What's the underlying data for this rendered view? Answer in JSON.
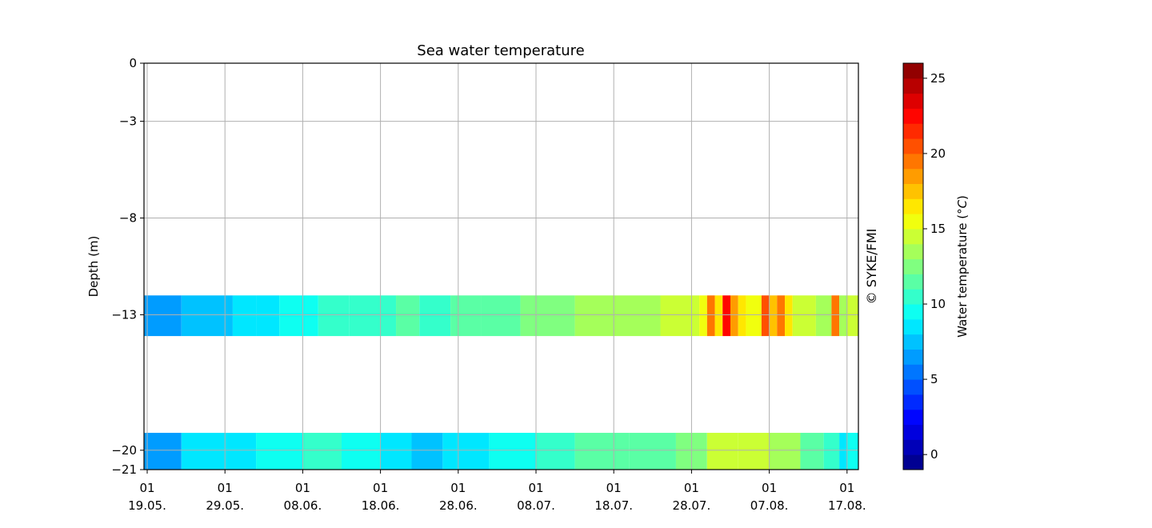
{
  "chart_data": {
    "type": "heatmap",
    "title": "Sea water temperature",
    "ylabel": "Depth (m)",
    "xlabel": "",
    "y_ticks": [
      0,
      -3,
      -8,
      -13,
      -20,
      -21
    ],
    "ylim": [
      -21,
      0
    ],
    "x_tick_labels": [
      {
        "line1": "01",
        "line2": "19.05."
      },
      {
        "line1": "01",
        "line2": "29.05."
      },
      {
        "line1": "01",
        "line2": "08.06."
      },
      {
        "line1": "01",
        "line2": "18.06."
      },
      {
        "line1": "01",
        "line2": "28.06."
      },
      {
        "line1": "01",
        "line2": "08.07."
      },
      {
        "line1": "01",
        "line2": "18.07."
      },
      {
        "line1": "01",
        "line2": "28.07."
      },
      {
        "line1": "01",
        "line2": "07.08."
      },
      {
        "line1": "01",
        "line2": "17.08."
      }
    ],
    "x_range": [
      "2023-05-19T01:00",
      "2023-08-18T17:00"
    ],
    "grid": true,
    "colorbar": {
      "label": "Water temperature (°C)",
      "label_main": "Water temperature (",
      "label_unit": "°C",
      "label_close": ")",
      "range": [
        -1,
        26
      ],
      "ticks": [
        0,
        5,
        10,
        15,
        20,
        25
      ],
      "colormap": "jet",
      "step": 1
    },
    "attribution": "© SYKE/FMI",
    "layers": [
      {
        "depth_range": [
          -14.1,
          -12.0
        ],
        "segments": [
          {
            "day": 0,
            "t": 6.4
          },
          {
            "day": 4.4,
            "t": 7.6
          },
          {
            "day": 11,
            "t": 8.2
          },
          {
            "day": 14,
            "t": 8.8
          },
          {
            "day": 17,
            "t": 9.3
          },
          {
            "day": 22,
            "t": 10.3
          },
          {
            "day": 26,
            "t": 10.9
          },
          {
            "day": 32,
            "t": 11.4
          },
          {
            "day": 35,
            "t": 10.8
          },
          {
            "day": 39,
            "t": 11.6
          },
          {
            "day": 43,
            "t": 11.9
          },
          {
            "day": 48,
            "t": 12.6
          },
          {
            "day": 55,
            "t": 13.2
          },
          {
            "day": 60,
            "t": 13.8
          },
          {
            "day": 66,
            "t": 14.1
          },
          {
            "day": 71,
            "t": 15.1
          },
          {
            "day": 72,
            "t": 19.4
          },
          {
            "day": 73,
            "t": 16.2
          },
          {
            "day": 74,
            "t": 22.8
          },
          {
            "day": 75,
            "t": 18.2
          },
          {
            "day": 76,
            "t": 16.9
          },
          {
            "day": 77,
            "t": 15.3
          },
          {
            "day": 79,
            "t": 20.6
          },
          {
            "day": 80,
            "t": 17.4
          },
          {
            "day": 81,
            "t": 19.8
          },
          {
            "day": 82,
            "t": 16.1
          },
          {
            "day": 83,
            "t": 14.2
          },
          {
            "day": 86,
            "t": 13.1
          },
          {
            "day": 88,
            "t": 19.3
          },
          {
            "day": 89,
            "t": 13.6
          },
          {
            "day": 90,
            "t": 14.3
          }
        ]
      },
      {
        "depth_range": [
          -21.0,
          -19.1
        ],
        "segments": [
          {
            "day": 0,
            "t": 6.6
          },
          {
            "day": 4.4,
            "t": 8.1
          },
          {
            "day": 10,
            "t": 8.9
          },
          {
            "day": 14,
            "t": 9.3
          },
          {
            "day": 20,
            "t": 10.3
          },
          {
            "day": 25,
            "t": 9.6
          },
          {
            "day": 30,
            "t": 8.6
          },
          {
            "day": 34,
            "t": 7.9
          },
          {
            "day": 38,
            "t": 8.4
          },
          {
            "day": 44,
            "t": 9.6
          },
          {
            "day": 50,
            "t": 10.6
          },
          {
            "day": 55,
            "t": 11.1
          },
          {
            "day": 62,
            "t": 11.9
          },
          {
            "day": 68,
            "t": 12.6
          },
          {
            "day": 72,
            "t": 14.3
          },
          {
            "day": 76,
            "t": 14.9
          },
          {
            "day": 80,
            "t": 13.4
          },
          {
            "day": 84,
            "t": 11.9
          },
          {
            "day": 87,
            "t": 10.6
          },
          {
            "day": 89,
            "t": 8.6
          },
          {
            "day": 90,
            "t": 9.2
          }
        ]
      }
    ]
  }
}
